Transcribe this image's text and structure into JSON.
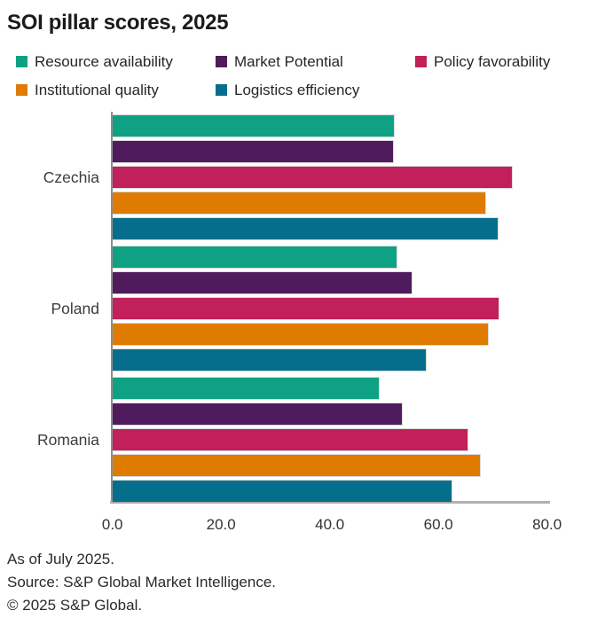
{
  "title": "SOI pillar scores, 2025",
  "chart_data": {
    "type": "bar",
    "orientation": "horizontal",
    "title": "SOI pillar scores, 2025",
    "categories": [
      "Czechia",
      "Poland",
      "Romania"
    ],
    "series": [
      {
        "name": "Resource availability",
        "color": "#0FA183",
        "values": [
          51.7,
          52.2,
          48.9
        ]
      },
      {
        "name": "Market Potential",
        "color": "#4F1B5C",
        "values": [
          51.6,
          55.0,
          53.2
        ]
      },
      {
        "name": "Policy favorability",
        "color": "#C2205A",
        "values": [
          73.5,
          71.0,
          65.3
        ]
      },
      {
        "name": "Institutional quality",
        "color": "#DE7B00",
        "values": [
          68.6,
          69.1,
          67.6
        ]
      },
      {
        "name": "Logistics efficiency",
        "color": "#056E8C",
        "values": [
          70.9,
          57.6,
          62.3
        ]
      }
    ],
    "xlabel": "",
    "ylabel": "",
    "xlim": [
      0,
      80
    ],
    "xtick_labels": [
      "0.0",
      "20.0",
      "40.0",
      "60.0",
      "80.0"
    ],
    "xtick_values": [
      0,
      20,
      40,
      60,
      80
    ],
    "legend_position": "top",
    "grid": false,
    "axis_color": "#8C8C8C"
  },
  "footer": {
    "line1": "As of July 2025.",
    "line2": "Source: S&P Global Market Intelligence.",
    "line3": "© 2025 S&P Global."
  }
}
